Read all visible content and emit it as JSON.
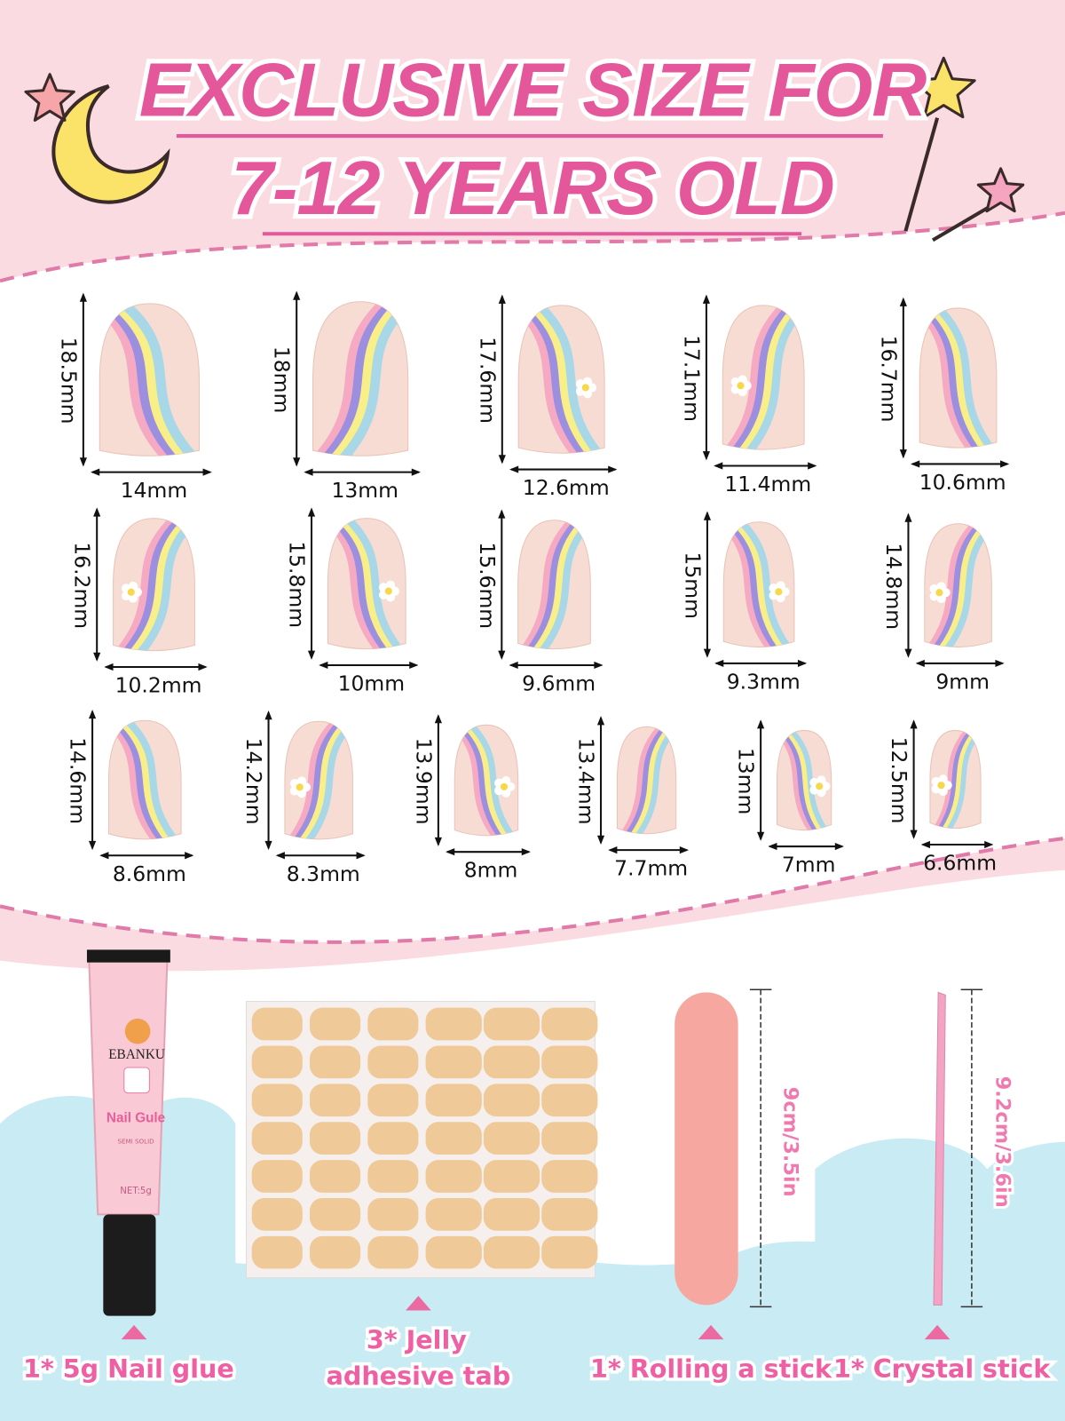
{
  "header": {
    "title_line1": "EXCLUSIVE SIZE FOR",
    "title_line2": "7-12 YEARS OLD"
  },
  "nails": [
    {
      "length": "18.5mm",
      "width": "14mm"
    },
    {
      "length": "18mm",
      "width": "13mm"
    },
    {
      "length": "17.6mm",
      "width": "12.6mm"
    },
    {
      "length": "17.1mm",
      "width": "11.4mm"
    },
    {
      "length": "16.7mm",
      "width": "10.6mm"
    },
    {
      "length": "16.2mm",
      "width": "10.2mm"
    },
    {
      "length": "15.8mm",
      "width": "10mm"
    },
    {
      "length": "15.6mm",
      "width": "9.6mm"
    },
    {
      "length": "15mm",
      "width": "9.3mm"
    },
    {
      "length": "14.8mm",
      "width": "9mm"
    },
    {
      "length": "14.6mm",
      "width": "8.6mm"
    },
    {
      "length": "14.2mm",
      "width": "8.3mm"
    },
    {
      "length": "13.9mm",
      "width": "8mm"
    },
    {
      "length": "13.4mm",
      "width": "7.7mm"
    },
    {
      "length": "13mm",
      "width": "7mm"
    },
    {
      "length": "12.5mm",
      "width": "6.6mm"
    }
  ],
  "products": {
    "glue": {
      "brand": "EBANKU",
      "name": "Nail Gule",
      "type": "SEMI SOLID",
      "net": "NET:5g",
      "label": "1* 5g Nail glue"
    },
    "tabs": {
      "label_lines": [
        "3* Jelly",
        "adhesive tab"
      ]
    },
    "file": {
      "size": "9cm/3.5in",
      "label": "1* Rolling a stick"
    },
    "stick": {
      "size": "9.2cm/3.6in",
      "label": "1* Crystal stick"
    }
  }
}
